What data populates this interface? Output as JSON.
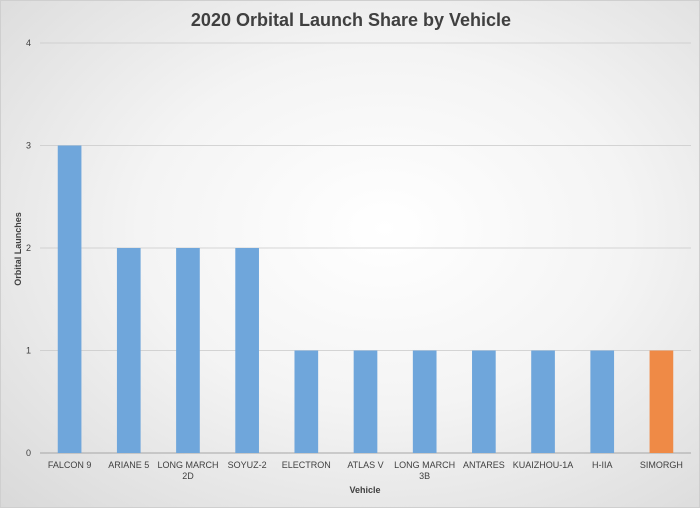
{
  "chart_data": {
    "type": "bar",
    "title": "2020 Orbital Launch Share by Vehicle",
    "xlabel": "Vehicle",
    "ylabel": "Orbital Launches",
    "ylim": [
      0,
      4
    ],
    "yticks": [
      "0",
      "1",
      "2",
      "3",
      "4"
    ],
    "categories": [
      [
        "FALCON 9"
      ],
      [
        "ARIANE 5"
      ],
      [
        "LONG MARCH",
        "2D"
      ],
      [
        "SOYUZ-2"
      ],
      [
        "ELECTRON"
      ],
      [
        "ATLAS V"
      ],
      [
        "LONG MARCH",
        "3B"
      ],
      [
        "ANTARES"
      ],
      [
        "KUAIZHOU-1A"
      ],
      [
        "H-IIA"
      ],
      [
        "SIMORGH"
      ]
    ],
    "values": [
      3,
      2,
      2,
      2,
      1,
      1,
      1,
      1,
      1,
      1,
      1
    ],
    "bar_colors": [
      "#6fa6db",
      "#6fa6db",
      "#6fa6db",
      "#6fa6db",
      "#6fa6db",
      "#6fa6db",
      "#6fa6db",
      "#6fa6db",
      "#6fa6db",
      "#6fa6db",
      "#ef8a46"
    ],
    "grid": true,
    "legend": "none"
  },
  "colors": {
    "bar": "#6fa6db",
    "highlight_bar": "#ef8a46",
    "gridline": "#c8c8c8",
    "axis": "#a6a6a6",
    "text": "#404040"
  }
}
